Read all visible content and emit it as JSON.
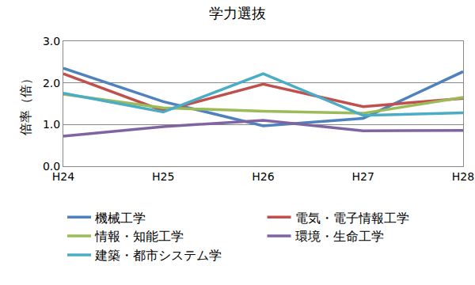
{
  "chart_data": {
    "type": "line",
    "title": "学力選抜",
    "y_label": "倍率（倍）",
    "categories": [
      "H24",
      "H25",
      "H26",
      "H27",
      "H28"
    ],
    "series": [
      {
        "name": "機械工学",
        "color": "#4f81bd",
        "values": [
          2.35,
          1.55,
          0.97,
          1.15,
          2.27
        ]
      },
      {
        "name": "電気・電子情報工学",
        "color": "#c0504d",
        "values": [
          2.22,
          1.33,
          1.97,
          1.43,
          1.63
        ]
      },
      {
        "name": "情報・知能工学",
        "color": "#9bbb59",
        "values": [
          1.73,
          1.4,
          1.32,
          1.27,
          1.65
        ]
      },
      {
        "name": "環境・生命工学",
        "color": "#8064a2",
        "values": [
          0.72,
          0.95,
          1.1,
          0.85,
          0.86
        ]
      },
      {
        "name": "建築・都市システム学",
        "color": "#4bacc6",
        "values": [
          1.75,
          1.3,
          2.22,
          1.22,
          1.28
        ]
      }
    ],
    "ylim": [
      0,
      3
    ],
    "yticks": [
      {
        "value": 0,
        "label": "0.0"
      },
      {
        "value": 1,
        "label": "1.0"
      },
      {
        "value": 2,
        "label": "2.0"
      },
      {
        "value": 3,
        "label": "3.0"
      }
    ],
    "grid": true,
    "legend": "bottom"
  }
}
